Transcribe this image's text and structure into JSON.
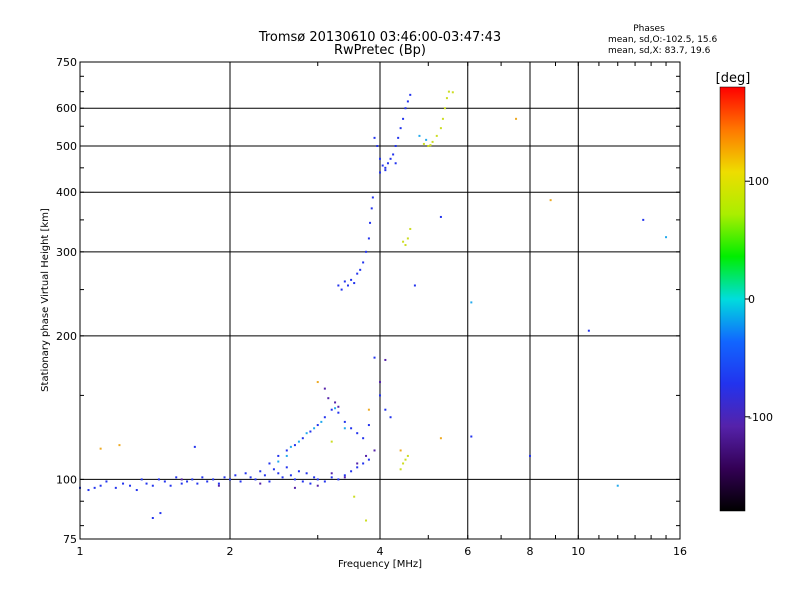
{
  "chart_data": {
    "type": "scatter",
    "title": "Tromsø 20130610 03:46:00-03:47:43",
    "subtitle": "RwPretec (Bp)",
    "xlabel": "Frequency [MHz]",
    "ylabel": "Stationary phase Virtual Height [km]",
    "x_scale": "log",
    "y_scale": "log",
    "xlim": [
      1,
      16
    ],
    "ylim": [
      75,
      750
    ],
    "x_ticks": [
      1,
      2,
      4,
      6,
      8,
      10,
      16
    ],
    "y_ticks": [
      75,
      100,
      200,
      300,
      400,
      500,
      600,
      750
    ],
    "grid": true,
    "info_heading": "Phases",
    "info_lines": [
      "mean, sd,O:-102.5, 15.6",
      "mean, sd,X:  83.7, 19.6"
    ],
    "colorbar": {
      "label": "[deg]",
      "range": [
        -180,
        180
      ],
      "ticks": [
        100,
        0,
        -100
      ]
    },
    "colors": {
      "blue": "#2233ee",
      "violet": "#5522aa",
      "cyan": "#22aaee",
      "yellow": "#ccdd22",
      "orange": "#eeaa22"
    },
    "series": [
      {
        "color": "blue",
        "points": [
          [
            1.0,
            96
          ],
          [
            1.04,
            95
          ],
          [
            1.07,
            96
          ],
          [
            1.1,
            97
          ],
          [
            1.13,
            99
          ],
          [
            1.18,
            96
          ],
          [
            1.22,
            98
          ],
          [
            1.26,
            97
          ],
          [
            1.3,
            95
          ],
          [
            1.33,
            100
          ],
          [
            1.36,
            98
          ],
          [
            1.4,
            97
          ],
          [
            1.44,
            100
          ],
          [
            1.48,
            99
          ],
          [
            1.52,
            97
          ],
          [
            1.56,
            101
          ],
          [
            1.6,
            98
          ],
          [
            1.64,
            99
          ],
          [
            1.68,
            100
          ],
          [
            1.72,
            98
          ],
          [
            1.76,
            101
          ],
          [
            1.8,
            99
          ],
          [
            1.85,
            100
          ],
          [
            1.9,
            98
          ],
          [
            1.95,
            101
          ],
          [
            2.0,
            100
          ],
          [
            2.05,
            102
          ],
          [
            2.1,
            99
          ],
          [
            2.15,
            103
          ],
          [
            2.2,
            101
          ],
          [
            2.25,
            100
          ],
          [
            2.3,
            104
          ],
          [
            2.35,
            102
          ],
          [
            2.4,
            99
          ],
          [
            2.45,
            105
          ],
          [
            2.5,
            103
          ],
          [
            2.55,
            101
          ],
          [
            2.6,
            106
          ],
          [
            2.65,
            102
          ],
          [
            2.7,
            100
          ],
          [
            2.75,
            104
          ],
          [
            2.8,
            99
          ],
          [
            2.85,
            103
          ],
          [
            2.9,
            98
          ],
          [
            2.95,
            101
          ],
          [
            3.0,
            100
          ],
          [
            3.1,
            99
          ],
          [
            3.2,
            101
          ],
          [
            3.3,
            100
          ],
          [
            3.4,
            102
          ],
          [
            3.5,
            104
          ],
          [
            3.6,
            106
          ],
          [
            3.7,
            108
          ],
          [
            3.8,
            110
          ],
          [
            2.4,
            108
          ],
          [
            2.5,
            112
          ],
          [
            2.6,
            115
          ],
          [
            2.7,
            118
          ],
          [
            2.8,
            122
          ],
          [
            2.9,
            126
          ],
          [
            3.0,
            130
          ],
          [
            3.1,
            135
          ],
          [
            3.2,
            140
          ],
          [
            3.3,
            138
          ],
          [
            3.4,
            132
          ],
          [
            3.5,
            128
          ],
          [
            3.6,
            125
          ],
          [
            3.7,
            122
          ],
          [
            3.8,
            130
          ],
          [
            3.9,
            180
          ],
          [
            4.0,
            150
          ],
          [
            4.1,
            140
          ],
          [
            4.2,
            135
          ],
          [
            1.7,
            117
          ],
          [
            3.3,
            255
          ],
          [
            3.35,
            250
          ],
          [
            3.4,
            260
          ],
          [
            3.45,
            255
          ],
          [
            3.5,
            262
          ],
          [
            3.55,
            258
          ],
          [
            3.6,
            270
          ],
          [
            3.65,
            275
          ],
          [
            3.7,
            285
          ],
          [
            3.75,
            300
          ],
          [
            3.8,
            320
          ],
          [
            3.82,
            345
          ],
          [
            3.85,
            370
          ],
          [
            3.87,
            390
          ],
          [
            3.9,
            520
          ],
          [
            3.95,
            500
          ],
          [
            4.0,
            470
          ],
          [
            4.05,
            455
          ],
          [
            4.1,
            450
          ],
          [
            4.15,
            460
          ],
          [
            4.2,
            470
          ],
          [
            4.25,
            480
          ],
          [
            4.3,
            500
          ],
          [
            4.35,
            520
          ],
          [
            4.4,
            545
          ],
          [
            4.45,
            570
          ],
          [
            4.5,
            600
          ],
          [
            4.55,
            620
          ],
          [
            4.6,
            640
          ],
          [
            4.0,
            440
          ],
          [
            4.1,
            445
          ],
          [
            4.3,
            460
          ],
          [
            4.7,
            255
          ],
          [
            5.3,
            355
          ],
          [
            6.1,
            123
          ],
          [
            8.0,
            112
          ],
          [
            10.5,
            205
          ],
          [
            13.5,
            350
          ],
          [
            1.45,
            85
          ],
          [
            1.4,
            83
          ]
        ]
      },
      {
        "color": "violet",
        "points": [
          [
            1.6,
            100
          ],
          [
            1.9,
            97
          ],
          [
            2.3,
            98
          ],
          [
            2.7,
            96
          ],
          [
            3.0,
            97
          ],
          [
            3.2,
            103
          ],
          [
            3.4,
            101
          ],
          [
            3.6,
            108
          ],
          [
            3.75,
            112
          ],
          [
            3.9,
            115
          ],
          [
            4.0,
            160
          ],
          [
            4.1,
            178
          ],
          [
            3.1,
            155
          ],
          [
            3.15,
            148
          ],
          [
            3.25,
            145
          ],
          [
            3.3,
            142
          ]
        ]
      },
      {
        "color": "cyan",
        "points": [
          [
            2.5,
            109
          ],
          [
            2.6,
            112
          ],
          [
            2.65,
            117
          ],
          [
            2.75,
            120
          ],
          [
            2.85,
            125
          ],
          [
            2.95,
            128
          ],
          [
            3.05,
            132
          ],
          [
            3.25,
            141
          ],
          [
            3.4,
            128
          ],
          [
            4.8,
            525
          ],
          [
            4.95,
            515
          ],
          [
            6.1,
            235
          ],
          [
            12.0,
            97
          ],
          [
            15.0,
            322
          ]
        ]
      },
      {
        "color": "yellow",
        "points": [
          [
            4.4,
            105
          ],
          [
            4.45,
            108
          ],
          [
            4.5,
            110
          ],
          [
            4.55,
            112
          ],
          [
            4.45,
            315
          ],
          [
            4.5,
            310
          ],
          [
            4.55,
            320
          ],
          [
            4.6,
            335
          ],
          [
            4.9,
            505
          ],
          [
            5.0,
            500
          ],
          [
            5.05,
            502
          ],
          [
            5.1,
            510
          ],
          [
            5.2,
            525
          ],
          [
            5.3,
            545
          ],
          [
            5.35,
            570
          ],
          [
            5.4,
            600
          ],
          [
            5.45,
            630
          ],
          [
            5.5,
            650
          ],
          [
            5.6,
            648
          ],
          [
            3.75,
            82
          ],
          [
            3.55,
            92
          ],
          [
            3.2,
            120
          ]
        ]
      },
      {
        "color": "orange",
        "points": [
          [
            1.1,
            116
          ],
          [
            1.2,
            118
          ],
          [
            3.0,
            160
          ],
          [
            3.8,
            140
          ],
          [
            4.4,
            115
          ],
          [
            5.3,
            122
          ],
          [
            7.5,
            570
          ],
          [
            8.8,
            385
          ]
        ]
      }
    ]
  }
}
